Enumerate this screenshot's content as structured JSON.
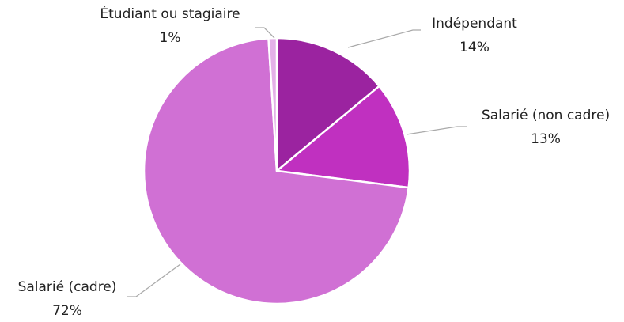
{
  "chart_data": {
    "type": "pie",
    "categories": [
      "Indépendant",
      "Salarié (non cadre)",
      "Salarié (cadre)",
      "Étudiant ou stagiaire"
    ],
    "values": [
      14,
      13,
      72,
      1
    ],
    "value_labels": [
      "14%",
      "13%",
      "72%",
      "1%"
    ],
    "colors": [
      "#9b23a0",
      "#c030c0",
      "#d070d4",
      "#e4b0e8"
    ]
  }
}
